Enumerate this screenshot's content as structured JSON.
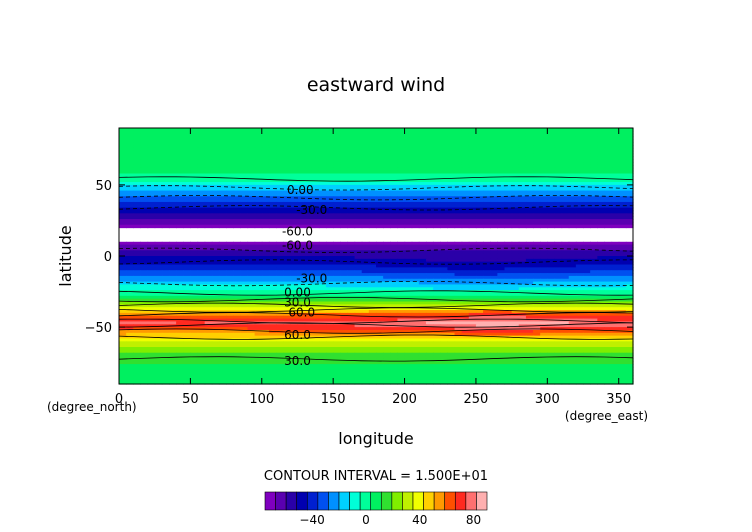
{
  "chart_data": {
    "type": "contour",
    "title": "eastward wind",
    "xlabel": "longitude",
    "ylabel": "latitude",
    "x_unit": "(degree_east)",
    "y_unit": "(degree_north)",
    "xlim": [
      0,
      360
    ],
    "ylim": [
      -90,
      90
    ],
    "x_ticks": [
      "0",
      "50",
      "100",
      "150",
      "200",
      "250",
      "300",
      "350"
    ],
    "y_ticks": [
      "50",
      "0",
      "−50"
    ],
    "x_tick_values": [
      0,
      50,
      100,
      150,
      200,
      250,
      300,
      350
    ],
    "y_tick_values": [
      50,
      0,
      -50
    ],
    "contour_interval_label": "CONTOUR INTERVAL = 1.500E+01",
    "contour_labels": [
      {
        "text": "0.00",
        "lon": 127,
        "lat": 47
      },
      {
        "text": "-30.0",
        "lon": 135,
        "lat": 33
      },
      {
        "text": "-60.0",
        "lon": 125,
        "lat": 18
      },
      {
        "text": "-60.0",
        "lon": 125,
        "lat": 8
      },
      {
        "text": "-30.0",
        "lon": 135,
        "lat": -15
      },
      {
        "text": "0.00",
        "lon": 125,
        "lat": -25
      },
      {
        "text": "30.0",
        "lon": 125,
        "lat": -32
      },
      {
        "text": "60.0",
        "lon": 128,
        "lat": -39
      },
      {
        "text": "60.0",
        "lon": 125,
        "lat": -55
      },
      {
        "text": "30.0",
        "lon": 125,
        "lat": -73
      }
    ],
    "colorbar": {
      "ticks": [
        "−40",
        "0",
        "40",
        "80"
      ],
      "tick_values": [
        -40,
        0,
        40,
        80
      ],
      "range": [
        -75,
        90
      ],
      "colors": [
        "#7f00bf",
        "#5a00b0",
        "#2a00a8",
        "#0000b0",
        "#0020d0",
        "#0050f0",
        "#0090ff",
        "#00d0ff",
        "#00ffd8",
        "#00ff9a",
        "#00f060",
        "#30e030",
        "#80ee00",
        "#c0f000",
        "#f0ff00",
        "#ffd000",
        "#ff9a00",
        "#ff5000",
        "#ff2a20",
        "#ff7070",
        "#ffb0b0"
      ]
    },
    "profile": [
      {
        "lat": 90,
        "u": 8
      },
      {
        "lat": 80,
        "u": 7
      },
      {
        "lat": 70,
        "u": 8
      },
      {
        "lat": 62,
        "u": 6
      },
      {
        "lat": 55,
        "u": 2
      },
      {
        "lat": 50,
        "u": -10
      },
      {
        "lat": 45,
        "u": -22
      },
      {
        "lat": 40,
        "u": -32
      },
      {
        "lat": 35,
        "u": -43
      },
      {
        "lat": 30,
        "u": -52
      },
      {
        "lat": 25,
        "u": -60
      },
      {
        "lat": 21,
        "u": -72
      },
      {
        "lat": 9,
        "u": -70
      },
      {
        "lat": 3,
        "u": -58
      },
      {
        "lat": -2,
        "u": -48
      },
      {
        "lat": -8,
        "u": -40
      },
      {
        "lat": -13,
        "u": -30
      },
      {
        "lat": -18,
        "u": -18
      },
      {
        "lat": -24,
        "u": -5
      },
      {
        "lat": -28,
        "u": 5
      },
      {
        "lat": -32,
        "u": 20
      },
      {
        "lat": -36,
        "u": 35
      },
      {
        "lat": -40,
        "u": 55
      },
      {
        "lat": -44,
        "u": 70
      },
      {
        "lat": -47,
        "u": 78
      },
      {
        "lat": -50,
        "u": 72
      },
      {
        "lat": -54,
        "u": 55
      },
      {
        "lat": -58,
        "u": 42
      },
      {
        "lat": -63,
        "u": 30
      },
      {
        "lat": -68,
        "u": 20
      },
      {
        "lat": -75,
        "u": 12
      },
      {
        "lat": -82,
        "u": 6
      },
      {
        "lat": -90,
        "u": 4
      }
    ],
    "missing_band_lat": [
      9,
      21
    ]
  }
}
